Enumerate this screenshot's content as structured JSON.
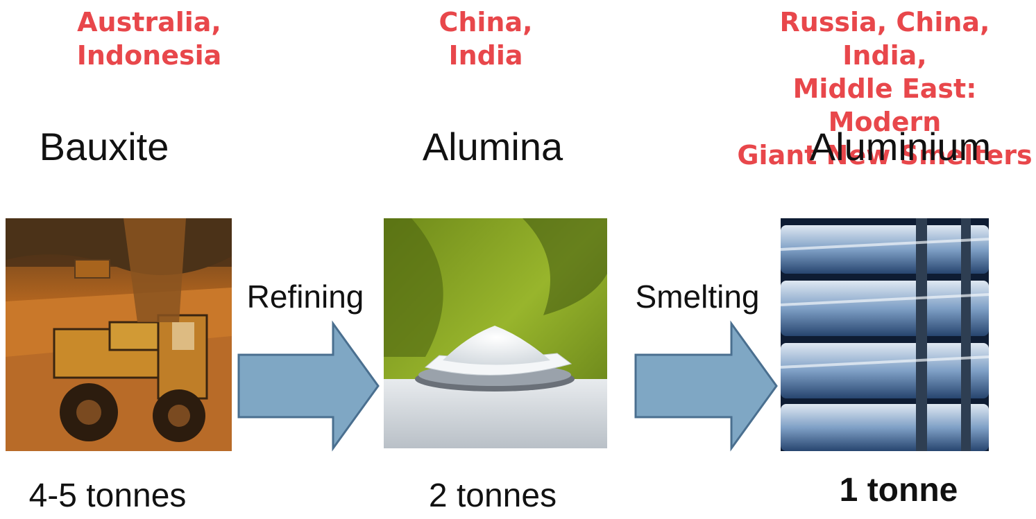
{
  "stages": [
    {
      "region": "Australia,\nIndonesia",
      "title": "Bauxite",
      "quantity": "4-5 tonnes",
      "image_icon": "bauxite-mining-photo"
    },
    {
      "region": "China,\nIndia",
      "title": "Alumina",
      "quantity": "2 tonnes",
      "image_icon": "alumina-powder-photo"
    },
    {
      "region": "Russia, China, India,\nMiddle East: Modern\nGiant New Smelters",
      "title": "Aluminium",
      "quantity": "1 tonne",
      "image_icon": "aluminium-ingots-photo"
    }
  ],
  "steps": [
    {
      "label": "Refining",
      "icon": "arrow-right-icon"
    },
    {
      "label": "Smelting",
      "icon": "arrow-right-icon"
    }
  ],
  "colors": {
    "region_text": "#e8474b",
    "arrow_fill": "#7fa7c4",
    "arrow_stroke": "#4a6f8f"
  }
}
